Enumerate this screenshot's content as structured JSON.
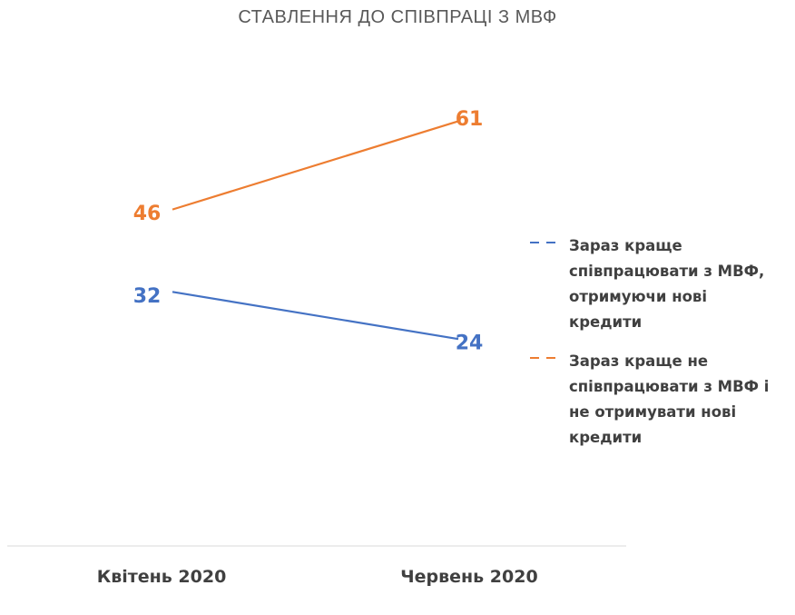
{
  "chart_data": {
    "type": "line",
    "title": "СТАВЛЕННЯ ДО СПІВПРАЦІ З МВФ",
    "categories": [
      "Квітень 2020",
      "Червень 2020"
    ],
    "series": [
      {
        "name": "Зараз краще співпрацювати з МВФ, отримуючи нові кредити",
        "values": [
          32,
          24
        ],
        "color": "#4472C4"
      },
      {
        "name": "Зараз краще не співпрацювати з МВФ і не отримувати нові кредити",
        "values": [
          46,
          61
        ],
        "color": "#ED7D31"
      }
    ],
    "data_labels": true,
    "grid": false,
    "legend_position": "right"
  }
}
